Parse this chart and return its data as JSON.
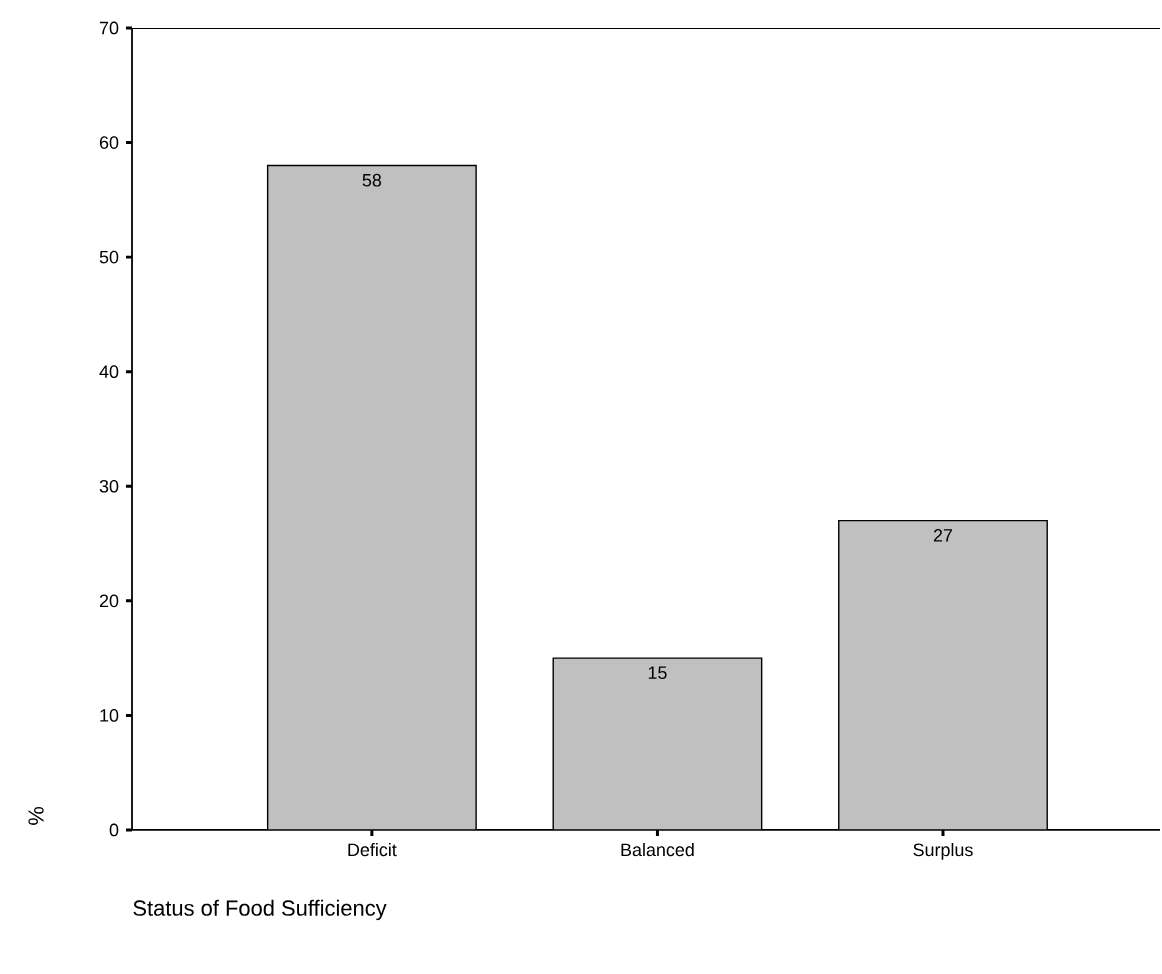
{
  "chart_data": {
    "type": "bar",
    "xlabel": "Status of Food Sufficiency",
    "ylabel": "%",
    "categories": [
      "Deficit",
      "Balanced",
      "Surplus"
    ],
    "values": [
      58,
      15,
      27
    ],
    "color": "#c0c0c0",
    "ylim": [
      0,
      70
    ],
    "yticks": [
      0,
      10,
      20,
      30,
      40,
      50,
      60,
      70
    ],
    "data_labels": true,
    "grid": false
  }
}
